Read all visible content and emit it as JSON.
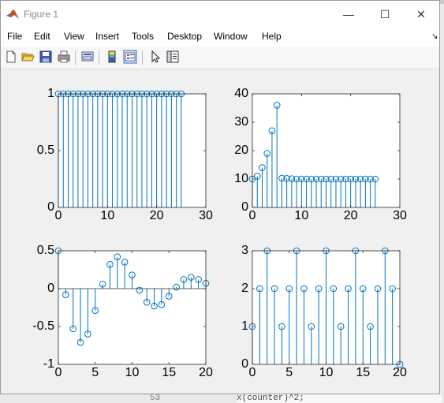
{
  "window": {
    "title": "Figure 1",
    "minimize_glyph": "—",
    "maximize_glyph": "☐",
    "close_glyph": "✕"
  },
  "background_text": {
    "line_number": "53",
    "code": "x(counter)^2;"
  },
  "menu": {
    "items": [
      "File",
      "Edit",
      "View",
      "Insert",
      "Tools",
      "Desktop",
      "Window",
      "Help"
    ],
    "undock_glyph": "↘"
  },
  "toolbar": {
    "icons": [
      "new-figure-icon",
      "open-file-icon",
      "save-icon",
      "print-icon",
      "print-preview-icon",
      "colorbar-icon",
      "legend-icon",
      "pointer-icon",
      "property-inspector-icon"
    ]
  },
  "colors": {
    "stem": "#0072bd",
    "axes_text": "#262626",
    "axes_line": "#262626"
  },
  "chart_data": [
    {
      "type": "stem",
      "x": [
        0,
        1,
        2,
        3,
        4,
        5,
        6,
        7,
        8,
        9,
        10,
        11,
        12,
        13,
        14,
        15,
        16,
        17,
        18,
        19,
        20,
        21,
        22,
        23,
        24,
        25
      ],
      "y": [
        1,
        1,
        1,
        1,
        1,
        1,
        1,
        1,
        1,
        1,
        1,
        1,
        1,
        1,
        1,
        1,
        1,
        1,
        1,
        1,
        1,
        1,
        1,
        1,
        1,
        1
      ],
      "xlim": [
        0,
        30
      ],
      "ylim": [
        0,
        1
      ],
      "xticks": [
        0,
        10,
        20,
        30
      ],
      "yticks": [
        0,
        0.5,
        1
      ],
      "xtick_labels": [
        "0",
        "10",
        "20",
        "30"
      ],
      "ytick_labels": [
        "0",
        "0.5",
        "1"
      ]
    },
    {
      "type": "stem",
      "x": [
        0,
        1,
        2,
        3,
        4,
        5,
        6,
        7,
        8,
        9,
        10,
        11,
        12,
        13,
        14,
        15,
        16,
        17,
        18,
        19,
        20,
        21,
        22,
        23,
        24,
        25
      ],
      "y": [
        10,
        11,
        14,
        19,
        27,
        36,
        10.3,
        10.2,
        10.1,
        10,
        10,
        10,
        10,
        10,
        10,
        10,
        10,
        10,
        10,
        10,
        10,
        10,
        10,
        10,
        10,
        10
      ],
      "xlim": [
        0,
        30
      ],
      "ylim": [
        0,
        40
      ],
      "xticks": [
        0,
        10,
        20,
        30
      ],
      "yticks": [
        0,
        10,
        20,
        30,
        40
      ],
      "xtick_labels": [
        "0",
        "10",
        "20",
        "30"
      ],
      "ytick_labels": [
        "0",
        "10",
        "20",
        "30",
        "40"
      ]
    },
    {
      "type": "stem",
      "x": [
        0,
        1,
        2,
        3,
        4,
        5,
        6,
        7,
        8,
        9,
        10,
        11,
        12,
        13,
        14,
        15,
        16,
        17,
        18,
        19,
        20
      ],
      "y": [
        0.5,
        -0.08,
        -0.53,
        -0.71,
        -0.6,
        -0.29,
        0.06,
        0.32,
        0.42,
        0.35,
        0.18,
        -0.02,
        -0.18,
        -0.23,
        -0.21,
        -0.1,
        0.02,
        0.12,
        0.15,
        0.12,
        0.07
      ],
      "xlim": [
        0,
        20
      ],
      "ylim": [
        -1,
        0.5
      ],
      "xticks": [
        0,
        5,
        10,
        15,
        20
      ],
      "yticks": [
        -1,
        -0.5,
        0,
        0.5
      ],
      "xtick_labels": [
        "0",
        "5",
        "10",
        "15",
        "20"
      ],
      "ytick_labels": [
        "-1",
        "-0.5",
        "0",
        "0.5"
      ]
    },
    {
      "type": "stem",
      "x": [
        0,
        1,
        2,
        3,
        4,
        5,
        6,
        7,
        8,
        9,
        10,
        11,
        12,
        13,
        14,
        15,
        16,
        17,
        18,
        19,
        20
      ],
      "y": [
        1,
        2,
        3,
        2,
        1,
        2,
        3,
        2,
        1,
        2,
        3,
        2,
        1,
        2,
        3,
        2,
        1,
        2,
        3,
        2,
        0
      ],
      "xlim": [
        0,
        20
      ],
      "ylim": [
        0,
        3
      ],
      "xticks": [
        0,
        5,
        10,
        15,
        20
      ],
      "yticks": [
        0,
        1,
        2,
        3
      ],
      "xtick_labels": [
        "0",
        "5",
        "10",
        "15",
        "20"
      ],
      "ytick_labels": [
        "0",
        "1",
        "2",
        "3"
      ]
    }
  ]
}
